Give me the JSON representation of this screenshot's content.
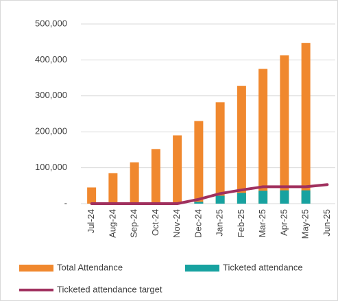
{
  "chart_data": {
    "type": "bar",
    "categories": [
      "Jul-24",
      "Aug-24",
      "Sep-24",
      "Oct-24",
      "Nov-24",
      "Dec-24",
      "Jan-25",
      "Feb-25",
      "Mar-25",
      "Apr-25",
      "May-25",
      "Jun-25"
    ],
    "series": [
      {
        "name": "Total Attendance",
        "color": "#f0882e",
        "kind": "bar",
        "values": [
          45000,
          85000,
          115000,
          152000,
          190000,
          230000,
          282000,
          328000,
          375000,
          413000,
          447000,
          null
        ]
      },
      {
        "name": "Ticketed attendance",
        "color": "#17a2a0",
        "kind": "bar",
        "values": [
          0,
          0,
          0,
          0,
          0,
          5000,
          22000,
          30000,
          36000,
          37000,
          37000,
          null
        ]
      },
      {
        "name": "Ticketed attendance target",
        "color": "#a0305e",
        "kind": "line",
        "values": [
          0,
          0,
          0,
          0,
          0,
          12000,
          28000,
          38000,
          47000,
          47000,
          47000,
          53000
        ]
      }
    ],
    "ylim": [
      0,
      500000
    ],
    "yticks": [
      {
        "value": 0,
        "label": "-"
      },
      {
        "value": 100000,
        "label": "100,000"
      },
      {
        "value": 200000,
        "label": "200,000"
      },
      {
        "value": 300000,
        "label": "300,000"
      },
      {
        "value": 400000,
        "label": "400,000"
      },
      {
        "value": 500000,
        "label": "500,000"
      }
    ],
    "grid": true
  }
}
